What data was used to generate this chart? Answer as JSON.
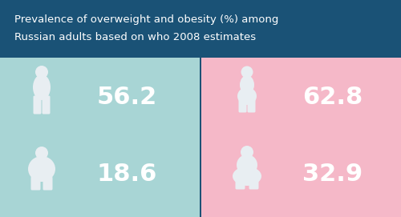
{
  "title_line1": "Prevalence of overweight and obesity (%) among",
  "title_line2": "Russian adults based on who 2008 estimates",
  "title_bg_color": "#1a5276",
  "title_text_color": "#ffffff",
  "left_bg_color": "#a8d5d5",
  "right_bg_color": "#f5b8c8",
  "figure_color": "#e8eef2",
  "male_overweight": "56.2",
  "male_obesity": "18.6",
  "female_overweight": "62.8",
  "female_obesity": "32.9",
  "value_color": "#ffffff",
  "value_fontsize": 22,
  "title_fontsize": 9.5
}
